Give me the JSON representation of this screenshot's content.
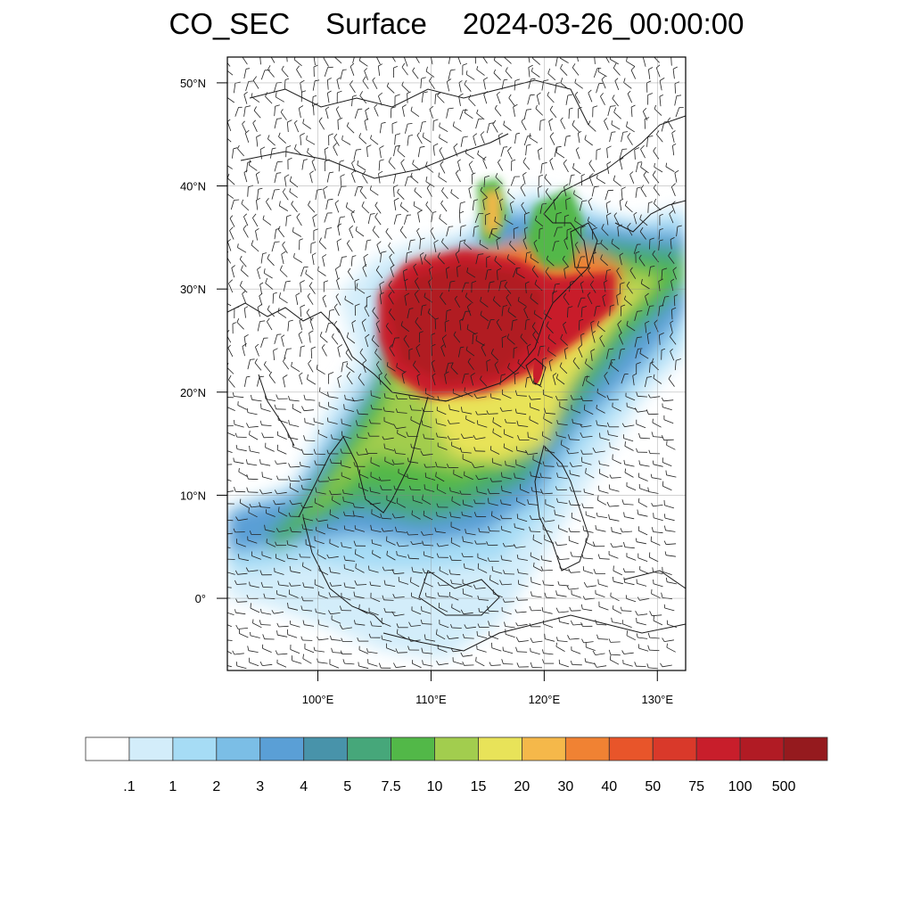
{
  "title": {
    "variable": "CO_SEC",
    "level": "Surface",
    "time": "2024-03-26_00:00:00"
  },
  "map": {
    "lon_range": [
      92,
      132.5
    ],
    "lat_range": [
      -7,
      52.5
    ],
    "lat_ticks": [
      {
        "value": 50,
        "label": "50°N"
      },
      {
        "value": 40,
        "label": "40°N"
      },
      {
        "value": 30,
        "label": "30°N"
      },
      {
        "value": 20,
        "label": "20°N"
      },
      {
        "value": 10,
        "label": "10°N"
      },
      {
        "value": 0,
        "label": "0°"
      }
    ],
    "lon_ticks": [
      {
        "value": 100,
        "label": "100°E"
      },
      {
        "value": 110,
        "label": "110°E"
      },
      {
        "value": 120,
        "label": "120°E"
      },
      {
        "value": 130,
        "label": "130°E"
      }
    ],
    "overlay": "wind barbs",
    "basemap": "coastlines and political boundaries"
  },
  "colorbar": {
    "colors": [
      "#ffffff",
      "#d3edfa",
      "#a6dcf5",
      "#7bbee6",
      "#5a9fd6",
      "#4893aa",
      "#46a77a",
      "#52b848",
      "#a2cd4e",
      "#e8e359",
      "#f5b84a",
      "#f08233",
      "#e8552a",
      "#d9392a",
      "#c81e2b",
      "#b11b24",
      "#951a1e"
    ],
    "labels": [
      ".1",
      "1",
      "2",
      "3",
      "4",
      "5",
      "7.5",
      "10",
      "15",
      "20",
      "30",
      "40",
      "50",
      "75",
      "100",
      "500"
    ]
  }
}
